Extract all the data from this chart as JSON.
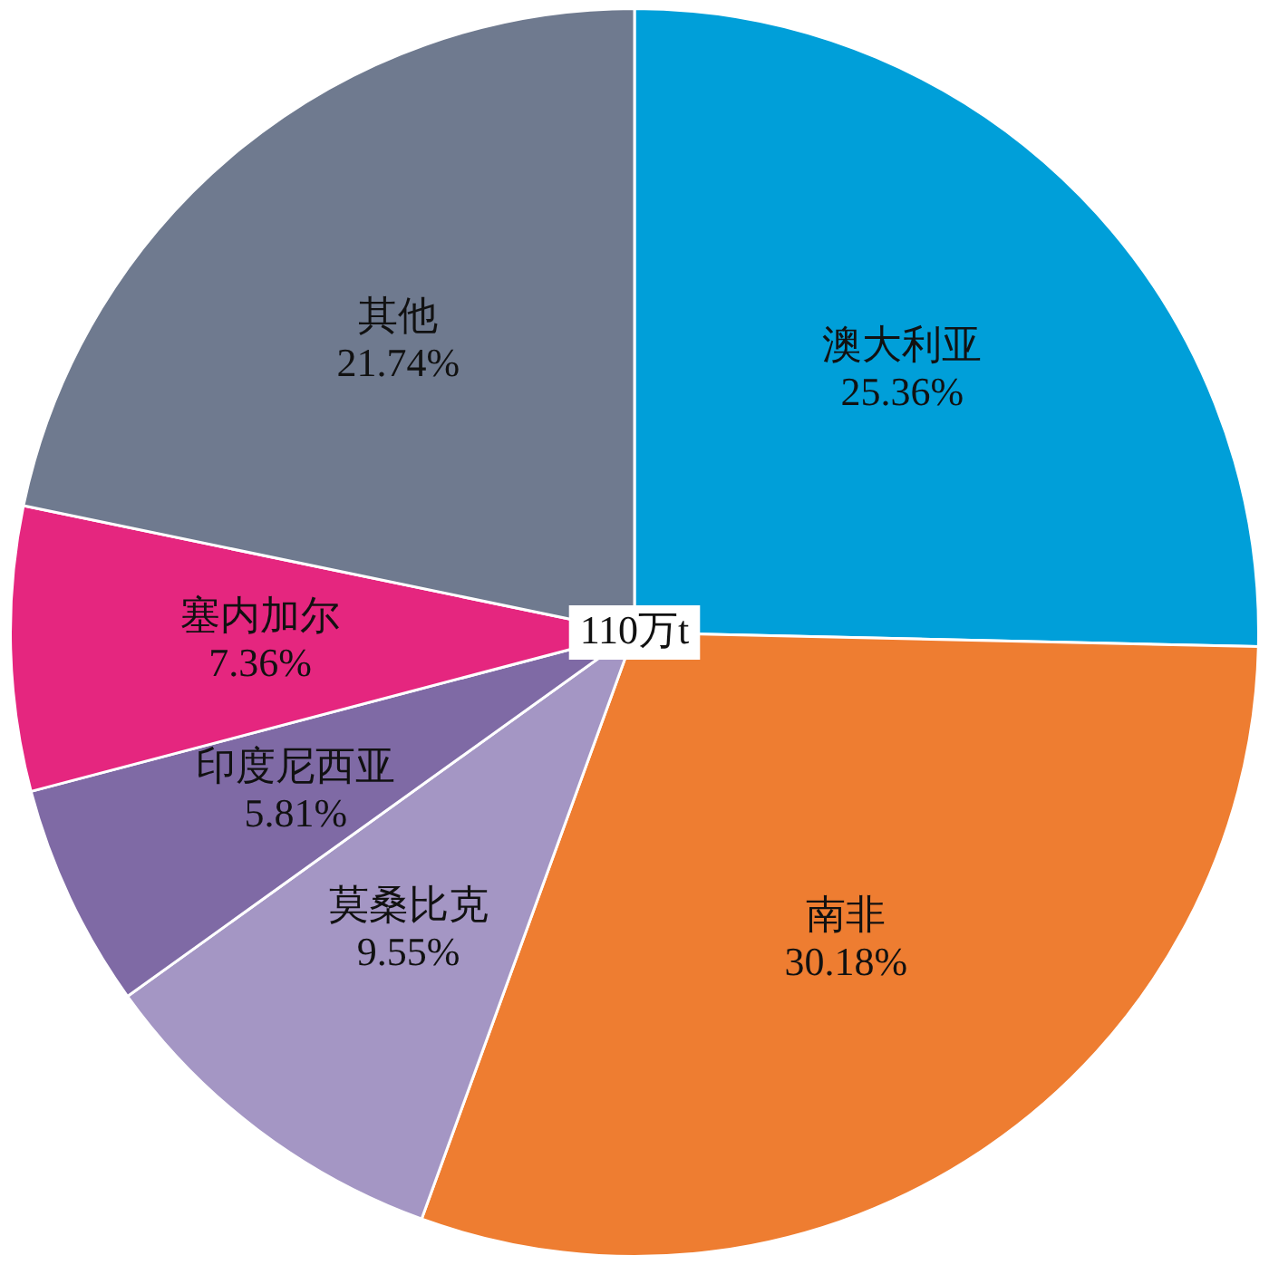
{
  "chart_data": {
    "type": "pie",
    "categories": [
      "澳大利亚",
      "南非",
      "莫桑比克",
      "印度尼西亚",
      "塞内加尔",
      "其他"
    ],
    "values": [
      25.36,
      30.18,
      9.55,
      5.81,
      7.36,
      21.74
    ],
    "colors": [
      "#009fd9",
      "#ee7d31",
      "#a496c4",
      "#7f6aa5",
      "#e5267f",
      "#6f7a8f"
    ],
    "value_labels": [
      "25.36%",
      "30.18%",
      "9.55%",
      "5.81%",
      "7.36%",
      "21.74%"
    ],
    "annotations": [
      "110万t"
    ],
    "legend": false
  }
}
